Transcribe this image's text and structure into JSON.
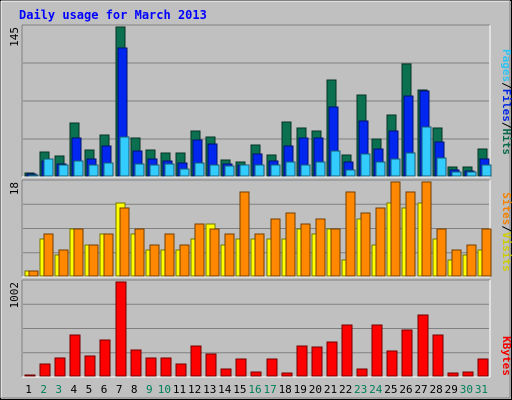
{
  "chart_data": {
    "type": "bar",
    "title": "Daily usage for March 2013",
    "categories": [
      "1",
      "2",
      "3",
      "4",
      "5",
      "6",
      "7",
      "8",
      "9",
      "10",
      "11",
      "12",
      "13",
      "14",
      "15",
      "16",
      "17",
      "18",
      "19",
      "20",
      "21",
      "22",
      "23",
      "24",
      "25",
      "26",
      "27",
      "28",
      "29",
      "30",
      "31"
    ],
    "weekend_days": [
      "2",
      "3",
      "9",
      "10",
      "16",
      "17",
      "23",
      "24",
      "30",
      "31"
    ],
    "panels": [
      {
        "name": "hits-files-pages",
        "scale_label": "145",
        "ylim": [
          0,
          145
        ],
        "legend": [
          "Pages",
          "/",
          "Files",
          "/",
          "Hits"
        ],
        "series": [
          {
            "name": "Hits",
            "color": "#0b7050",
            "values": [
              3,
              23,
              19,
              52,
              25,
              40,
              145,
              37,
              25,
              22,
              22,
              44,
              38,
              16,
              14,
              30,
              20,
              53,
              47,
              44,
              93,
              20,
              79,
              36,
              59,
              109,
              84,
              47,
              9,
              9,
              26
            ]
          },
          {
            "name": "Files",
            "color": "#0026ef",
            "values": [
              2,
              15,
              12,
              37,
              17,
              29,
              125,
              24,
              17,
              15,
              13,
              35,
              31,
              12,
              11,
              21,
              15,
              29,
              37,
              37,
              67,
              14,
              54,
              26,
              44,
              78,
              83,
              33,
              6,
              5,
              17
            ]
          },
          {
            "name": "Pages",
            "color": "#33ccff",
            "values": [
              1,
              17,
              11,
              15,
              11,
              13,
              38,
              12,
              11,
              12,
              7,
              13,
              11,
              10,
              11,
              11,
              11,
              14,
              11,
              14,
              24,
              6,
              21,
              14,
              17,
              22,
              48,
              18,
              4,
              4,
              11
            ]
          }
        ]
      },
      {
        "name": "visits-sites",
        "scale_label": "18",
        "ylim": [
          0,
          18
        ],
        "legend": [
          "Sites",
          "/",
          "Visits"
        ],
        "series": [
          {
            "name": "Visits",
            "color": "#ffff00",
            "values": [
              1,
              7,
              4,
              9,
              6,
              8,
              14,
              8,
              5,
              5,
              5,
              7,
              10,
              6,
              7,
              7,
              7,
              7,
              9,
              8,
              9,
              3,
              11,
              6,
              14,
              13,
              14,
              7,
              3,
              4,
              5
            ]
          },
          {
            "name": "Sites",
            "color": "#ff8800",
            "values": [
              1,
              8,
              5,
              9,
              6,
              8,
              13,
              9,
              6,
              8,
              6,
              10,
              9,
              8,
              16,
              8,
              11,
              12,
              10,
              11,
              9,
              16,
              12,
              13,
              18,
              16,
              18,
              9,
              5,
              6,
              9
            ]
          }
        ]
      },
      {
        "name": "kbytes",
        "scale_label": "1002",
        "ylim": [
          0,
          1002
        ],
        "legend": [
          "KBytes"
        ],
        "series": [
          {
            "name": "KBytes",
            "color": "#ff0000",
            "values": [
              2,
              130,
              195,
              440,
              215,
              380,
              1002,
              275,
              190,
              195,
              130,
              315,
              235,
              70,
              180,
              40,
              185,
              35,
              320,
              310,
              360,
              540,
              75,
              540,
              265,
              495,
              650,
              440,
              35,
              40,
              180
            ]
          }
        ]
      }
    ]
  }
}
